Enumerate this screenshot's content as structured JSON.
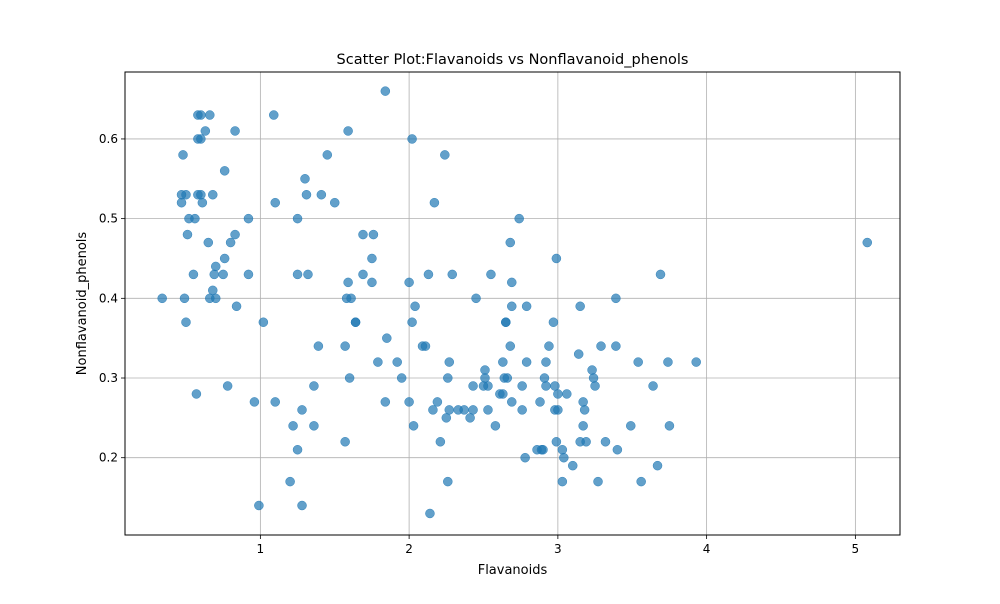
{
  "chart_data": {
    "type": "scatter",
    "title": "Scatter Plot:Flavanoids vs Nonflavanoid_phenols",
    "xlabel": "Flavanoids",
    "ylabel": "Nonflavanoid_phenols",
    "xlim": [
      0.09,
      5.3
    ],
    "ylim": [
      0.103,
      0.684
    ],
    "xticks": [
      1,
      2,
      3,
      4,
      5
    ],
    "yticks": [
      0.2,
      0.3,
      0.4,
      0.5,
      0.6
    ],
    "xtick_labels": [
      "1",
      "2",
      "3",
      "4",
      "5"
    ],
    "ytick_labels": [
      "0.2",
      "0.3",
      "0.4",
      "0.5",
      "0.6"
    ],
    "grid": true,
    "marker_color": "#1f77b4",
    "marker_alpha": 0.7,
    "points": [
      [
        0.34,
        0.4
      ],
      [
        0.47,
        0.53
      ],
      [
        0.47,
        0.52
      ],
      [
        0.48,
        0.58
      ],
      [
        0.49,
        0.4
      ],
      [
        0.5,
        0.53
      ],
      [
        0.5,
        0.37
      ],
      [
        0.51,
        0.48
      ],
      [
        0.52,
        0.5
      ],
      [
        0.55,
        0.43
      ],
      [
        0.56,
        0.5
      ],
      [
        0.57,
        0.28
      ],
      [
        0.58,
        0.63
      ],
      [
        0.58,
        0.6
      ],
      [
        0.58,
        0.53
      ],
      [
        0.6,
        0.63
      ],
      [
        0.6,
        0.6
      ],
      [
        0.6,
        0.53
      ],
      [
        0.61,
        0.52
      ],
      [
        0.63,
        0.61
      ],
      [
        0.65,
        0.47
      ],
      [
        0.66,
        0.4
      ],
      [
        0.66,
        0.63
      ],
      [
        0.68,
        0.41
      ],
      [
        0.68,
        0.53
      ],
      [
        0.69,
        0.43
      ],
      [
        0.7,
        0.44
      ],
      [
        0.7,
        0.4
      ],
      [
        0.75,
        0.43
      ],
      [
        0.76,
        0.56
      ],
      [
        0.76,
        0.45
      ],
      [
        0.78,
        0.29
      ],
      [
        0.8,
        0.47
      ],
      [
        0.83,
        0.48
      ],
      [
        0.83,
        0.61
      ],
      [
        0.84,
        0.39
      ],
      [
        0.92,
        0.5
      ],
      [
        0.92,
        0.43
      ],
      [
        0.96,
        0.27
      ],
      [
        0.99,
        0.14
      ],
      [
        1.02,
        0.37
      ],
      [
        1.09,
        0.63
      ],
      [
        1.1,
        0.52
      ],
      [
        1.1,
        0.27
      ],
      [
        1.2,
        0.17
      ],
      [
        1.22,
        0.24
      ],
      [
        1.25,
        0.5
      ],
      [
        1.25,
        0.43
      ],
      [
        1.25,
        0.21
      ],
      [
        1.28,
        0.14
      ],
      [
        1.28,
        0.26
      ],
      [
        1.3,
        0.55
      ],
      [
        1.31,
        0.53
      ],
      [
        1.32,
        0.43
      ],
      [
        1.36,
        0.29
      ],
      [
        1.36,
        0.24
      ],
      [
        1.39,
        0.34
      ],
      [
        1.41,
        0.53
      ],
      [
        1.45,
        0.58
      ],
      [
        1.5,
        0.52
      ],
      [
        1.57,
        0.34
      ],
      [
        1.57,
        0.22
      ],
      [
        1.58,
        0.4
      ],
      [
        1.59,
        0.61
      ],
      [
        1.59,
        0.42
      ],
      [
        1.6,
        0.3
      ],
      [
        1.61,
        0.4
      ],
      [
        1.64,
        0.37
      ],
      [
        1.64,
        0.37
      ],
      [
        1.69,
        0.48
      ],
      [
        1.69,
        0.43
      ],
      [
        1.75,
        0.42
      ],
      [
        1.75,
        0.45
      ],
      [
        1.76,
        0.48
      ],
      [
        1.79,
        0.32
      ],
      [
        1.84,
        0.66
      ],
      [
        1.84,
        0.27
      ],
      [
        1.85,
        0.35
      ],
      [
        1.92,
        0.32
      ],
      [
        1.95,
        0.3
      ],
      [
        2.0,
        0.42
      ],
      [
        2.0,
        0.27
      ],
      [
        2.02,
        0.6
      ],
      [
        2.02,
        0.37
      ],
      [
        2.03,
        0.24
      ],
      [
        2.04,
        0.39
      ],
      [
        2.09,
        0.34
      ],
      [
        2.11,
        0.34
      ],
      [
        2.13,
        0.43
      ],
      [
        2.14,
        0.13
      ],
      [
        2.16,
        0.26
      ],
      [
        2.17,
        0.52
      ],
      [
        2.19,
        0.27
      ],
      [
        2.21,
        0.22
      ],
      [
        2.24,
        0.58
      ],
      [
        2.25,
        0.25
      ],
      [
        2.26,
        0.17
      ],
      [
        2.26,
        0.3
      ],
      [
        2.27,
        0.32
      ],
      [
        2.27,
        0.26
      ],
      [
        2.29,
        0.43
      ],
      [
        2.33,
        0.26
      ],
      [
        2.37,
        0.26
      ],
      [
        2.41,
        0.25
      ],
      [
        2.43,
        0.26
      ],
      [
        2.43,
        0.29
      ],
      [
        2.45,
        0.4
      ],
      [
        2.5,
        0.29
      ],
      [
        2.51,
        0.31
      ],
      [
        2.51,
        0.3
      ],
      [
        2.53,
        0.26
      ],
      [
        2.53,
        0.29
      ],
      [
        2.55,
        0.43
      ],
      [
        2.58,
        0.24
      ],
      [
        2.61,
        0.28
      ],
      [
        2.63,
        0.32
      ],
      [
        2.63,
        0.28
      ],
      [
        2.64,
        0.3
      ],
      [
        2.65,
        0.37
      ],
      [
        2.65,
        0.37
      ],
      [
        2.66,
        0.3
      ],
      [
        2.68,
        0.34
      ],
      [
        2.68,
        0.47
      ],
      [
        2.69,
        0.27
      ],
      [
        2.69,
        0.42
      ],
      [
        2.69,
        0.39
      ],
      [
        2.74,
        0.5
      ],
      [
        2.76,
        0.29
      ],
      [
        2.76,
        0.26
      ],
      [
        2.78,
        0.2
      ],
      [
        2.79,
        0.39
      ],
      [
        2.79,
        0.32
      ],
      [
        2.86,
        0.21
      ],
      [
        2.88,
        0.27
      ],
      [
        2.89,
        0.21
      ],
      [
        2.9,
        0.21
      ],
      [
        2.91,
        0.3
      ],
      [
        2.92,
        0.32
      ],
      [
        2.92,
        0.29
      ],
      [
        2.94,
        0.34
      ],
      [
        2.97,
        0.37
      ],
      [
        2.98,
        0.26
      ],
      [
        2.98,
        0.29
      ],
      [
        2.99,
        0.45
      ],
      [
        2.99,
        0.22
      ],
      [
        3.0,
        0.28
      ],
      [
        3.0,
        0.26
      ],
      [
        3.03,
        0.21
      ],
      [
        3.03,
        0.17
      ],
      [
        3.04,
        0.2
      ],
      [
        3.06,
        0.28
      ],
      [
        3.1,
        0.19
      ],
      [
        3.14,
        0.33
      ],
      [
        3.15,
        0.39
      ],
      [
        3.15,
        0.22
      ],
      [
        3.17,
        0.27
      ],
      [
        3.17,
        0.24
      ],
      [
        3.18,
        0.26
      ],
      [
        3.19,
        0.22
      ],
      [
        3.23,
        0.31
      ],
      [
        3.24,
        0.3
      ],
      [
        3.25,
        0.29
      ],
      [
        3.27,
        0.17
      ],
      [
        3.29,
        0.34
      ],
      [
        3.32,
        0.22
      ],
      [
        3.39,
        0.4
      ],
      [
        3.39,
        0.34
      ],
      [
        3.4,
        0.21
      ],
      [
        3.49,
        0.24
      ],
      [
        3.54,
        0.32
      ],
      [
        3.56,
        0.17
      ],
      [
        3.64,
        0.29
      ],
      [
        3.67,
        0.19
      ],
      [
        3.69,
        0.43
      ],
      [
        3.74,
        0.32
      ],
      [
        3.75,
        0.24
      ],
      [
        3.93,
        0.32
      ],
      [
        5.08,
        0.47
      ]
    ]
  }
}
